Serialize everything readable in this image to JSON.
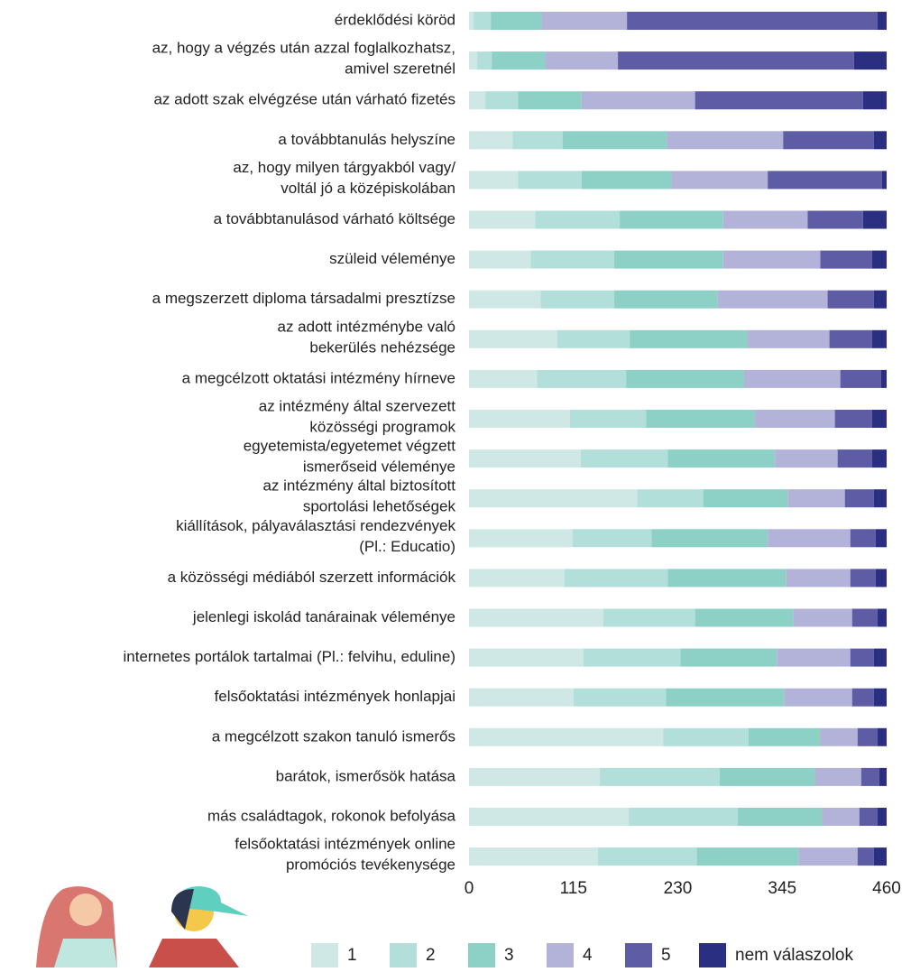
{
  "chart_data": {
    "type": "stacked-bar-horizontal",
    "categories": [
      [
        "érdeklődési köröd"
      ],
      [
        "az, hogy a végzés után azzal foglalkozhatsz,",
        "amivel szeretnél"
      ],
      [
        "az adott szak elvégzése után várható fizetés"
      ],
      [
        "a továbbtanulás helyszíne"
      ],
      [
        "az, hogy milyen tárgyakból vagy/",
        "voltál jó a középiskolában"
      ],
      [
        "a továbbtanulásod várható költsége"
      ],
      [
        "szüleid véleménye"
      ],
      [
        "a megszerzett diploma társadalmi presztízse"
      ],
      [
        "az adott intézménybe való",
        "bekerülés nehézsége"
      ],
      [
        "a megcélzott oktatási intézmény hírneve"
      ],
      [
        "az intézmény által szervezett",
        "közösségi programok"
      ],
      [
        "egyetemista/egyetemet végzett",
        "ismerőseid véleménye"
      ],
      [
        "az intézmény által biztosított",
        "sportolási lehetőségek"
      ],
      [
        "kiállítások, pályaválasztási rendezvények",
        "(Pl.: Educatio)"
      ],
      [
        "a közösségi médiából szerzett információk"
      ],
      [
        "jelenlegi iskolád tanárainak véleménye"
      ],
      [
        "internetes portálok tartalmai (Pl.: felvihu, eduline)"
      ],
      [
        "felsőoktatási intézmények honlapjai"
      ],
      [
        "a megcélzott szakon tanuló ismerős"
      ],
      [
        "barátok, ismerősök hatása"
      ],
      [
        "más családtagok, rokonok befolyása"
      ],
      [
        "felsőoktatási intézmények online",
        "promóciós tevékenysége"
      ]
    ],
    "series": [
      {
        "name": "1",
        "color": "#cfe8e5",
        "values": [
          5,
          9,
          18,
          48,
          54,
          73,
          68,
          79,
          97,
          75,
          111,
          123,
          185,
          114,
          105,
          148,
          126,
          115,
          214,
          144,
          176,
          142
        ]
      },
      {
        "name": "2",
        "color": "#b2dfd9",
        "values": [
          19,
          16,
          36,
          55,
          70,
          93,
          92,
          81,
          80,
          98,
          84,
          96,
          73,
          87,
          114,
          101,
          107,
          102,
          94,
          132,
          120,
          109
        ]
      },
      {
        "name": "3",
        "color": "#8dd0c5",
        "values": [
          56,
          59,
          70,
          115,
          99,
          114,
          120,
          114,
          130,
          130,
          120,
          118,
          93,
          128,
          130,
          108,
          106,
          130,
          79,
          105,
          93,
          112
        ]
      },
      {
        "name": "4",
        "color": "#b3b3d9",
        "values": [
          94,
          80,
          125,
          128,
          106,
          93,
          107,
          121,
          90,
          106,
          88,
          69,
          63,
          91,
          71,
          65,
          81,
          75,
          41,
          51,
          41,
          65
        ]
      },
      {
        "name": "5",
        "color": "#5d5ca4",
        "values": [
          276,
          260,
          185,
          100,
          126,
          61,
          57,
          51,
          47,
          45,
          41,
          38,
          32,
          28,
          28,
          28,
          26,
          24,
          22,
          20,
          20,
          18
        ]
      },
      {
        "name": "nem válaszolok",
        "color": "#2b2f82",
        "values": [
          10,
          36,
          26,
          14,
          5,
          26,
          16,
          14,
          16,
          6,
          16,
          16,
          14,
          12,
          12,
          10,
          14,
          14,
          10,
          8,
          10,
          14
        ]
      }
    ],
    "xlim": [
      0,
      460
    ],
    "xticks": [
      0,
      115,
      230,
      345,
      460
    ],
    "grid": false
  }
}
